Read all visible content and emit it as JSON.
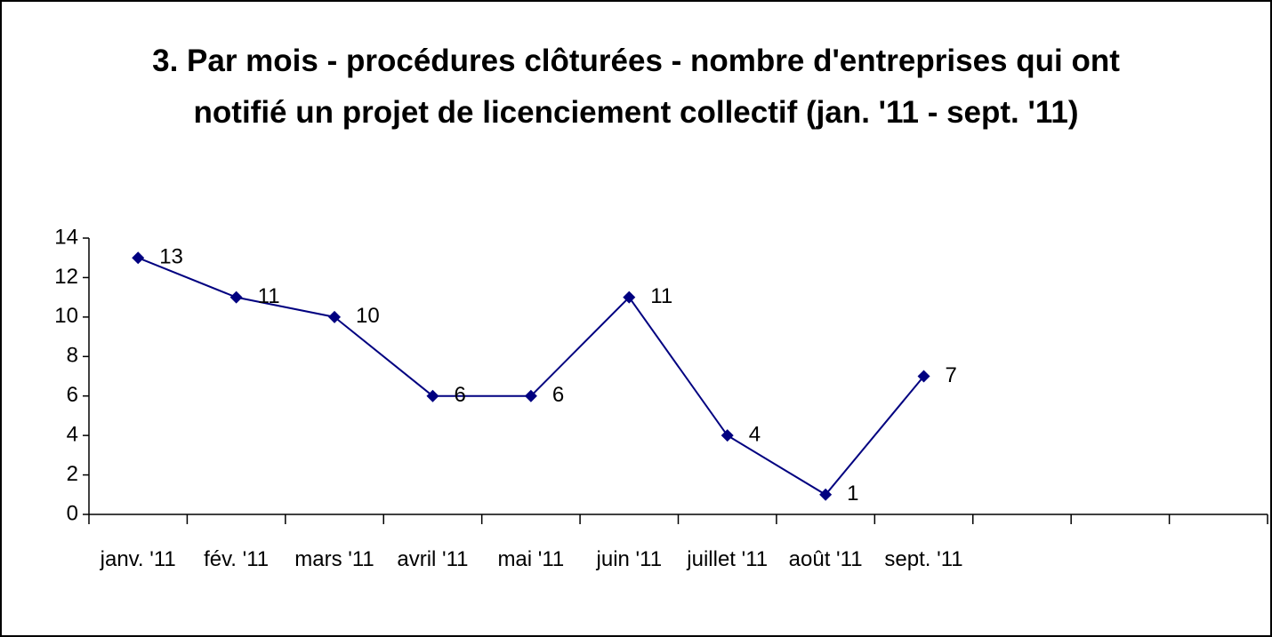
{
  "chart_data": {
    "type": "line",
    "title": "3. Par mois - procédures clôturées - nombre d'entreprises qui ont notifié un projet de licenciement collectif (jan. '11 - sept. '11)",
    "categories": [
      "janv. '11",
      "fév. '11",
      "mars '11",
      "avril '11",
      "mai '11",
      "juin '11",
      "juillet '11",
      "août '11",
      "sept. '11",
      null,
      null,
      null
    ],
    "series": [
      {
        "name": "procédures clôturées",
        "color": "#000080",
        "values": [
          13,
          11,
          10,
          6,
          6,
          11,
          4,
          1,
          7,
          null,
          null,
          null
        ]
      }
    ],
    "ylim": [
      0,
      14
    ],
    "yticks": [
      0,
      2,
      4,
      6,
      8,
      10,
      12,
      14
    ],
    "grid": false
  }
}
